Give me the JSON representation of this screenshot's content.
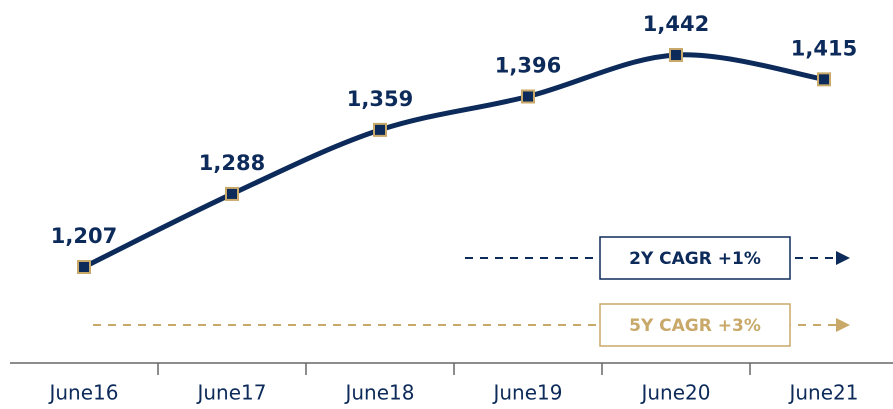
{
  "chart_data": {
    "type": "line",
    "categories": [
      "June16",
      "June17",
      "June18",
      "June19",
      "June20",
      "June21"
    ],
    "values": [
      1207,
      1288,
      1359,
      1396,
      1442,
      1415
    ],
    "value_labels": [
      "1,207",
      "1,288",
      "1,359",
      "1,396",
      "1,442",
      "1,415"
    ],
    "color": "#0d2b5a",
    "marker_edge_color": "#c8a96a",
    "annotations": [
      {
        "text": "2Y CAGR +1%",
        "color": "#0d2b5a"
      },
      {
        "text": "5Y CAGR +3%",
        "color": "#c8a96a"
      }
    ]
  }
}
